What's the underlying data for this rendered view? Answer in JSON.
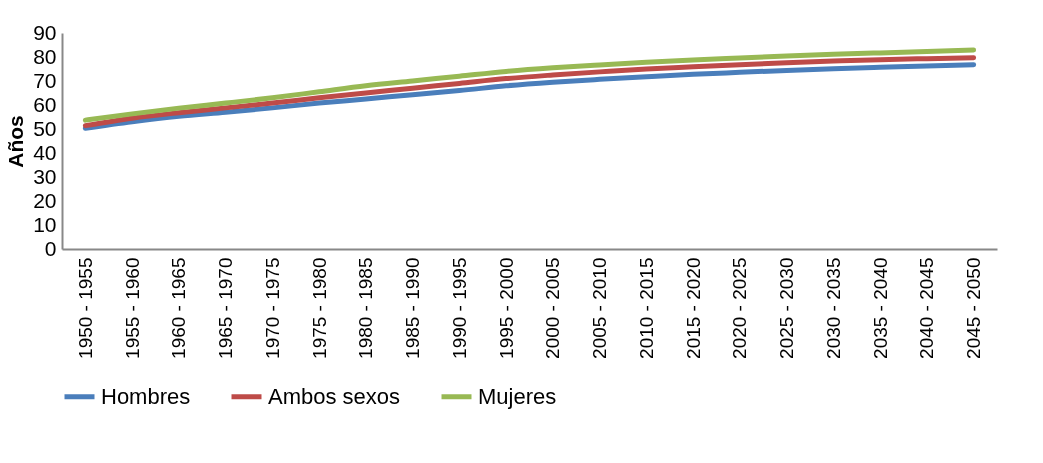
{
  "chart_data": {
    "type": "line",
    "ylabel": "Años",
    "categories": [
      "1950 - 1955",
      "1955 - 1960",
      "1960 - 1965",
      "1965 - 1970",
      "1970 - 1975",
      "1975 - 1980",
      "1980 - 1985",
      "1985 - 1990",
      "1990 - 1995",
      "1995 - 2000",
      "2000 - 2005",
      "2005 - 2010",
      "2010 - 2015",
      "2015 - 2020",
      "2020 - 2025",
      "2025 - 2030",
      "2030 - 2035",
      "2035 - 2040",
      "2040 - 2045",
      "2045 - 2050"
    ],
    "series": [
      {
        "name": "Hombres",
        "color": "#4a7ebb",
        "values": [
          50.3,
          53.0,
          55.3,
          57.0,
          58.8,
          60.8,
          62.5,
          64.3,
          66.0,
          68.0,
          69.5,
          70.7,
          71.8,
          72.8,
          73.6,
          74.4,
          75.1,
          75.7,
          76.3,
          76.8
        ]
      },
      {
        "name": "Ambos sexos",
        "color": "#be4b48",
        "values": [
          51.4,
          54.5,
          56.8,
          58.8,
          60.8,
          63.0,
          65.0,
          67.0,
          69.0,
          71.0,
          72.5,
          73.8,
          75.0,
          75.9,
          76.8,
          77.6,
          78.3,
          78.9,
          79.3,
          79.7
        ]
      },
      {
        "name": "Mujeres",
        "color": "#98b954",
        "values": [
          53.7,
          56.3,
          58.7,
          60.8,
          63.0,
          65.5,
          68.0,
          70.0,
          72.0,
          74.0,
          75.5,
          76.7,
          77.8,
          78.8,
          79.6,
          80.4,
          81.1,
          81.7,
          82.3,
          82.9
        ]
      }
    ],
    "ylim": [
      0,
      90
    ],
    "yticks": [
      0,
      10,
      20,
      30,
      40,
      50,
      60,
      70,
      80,
      90
    ],
    "grid": false,
    "legend": "bottom",
    "marker": "none",
    "line_style": "solid"
  }
}
